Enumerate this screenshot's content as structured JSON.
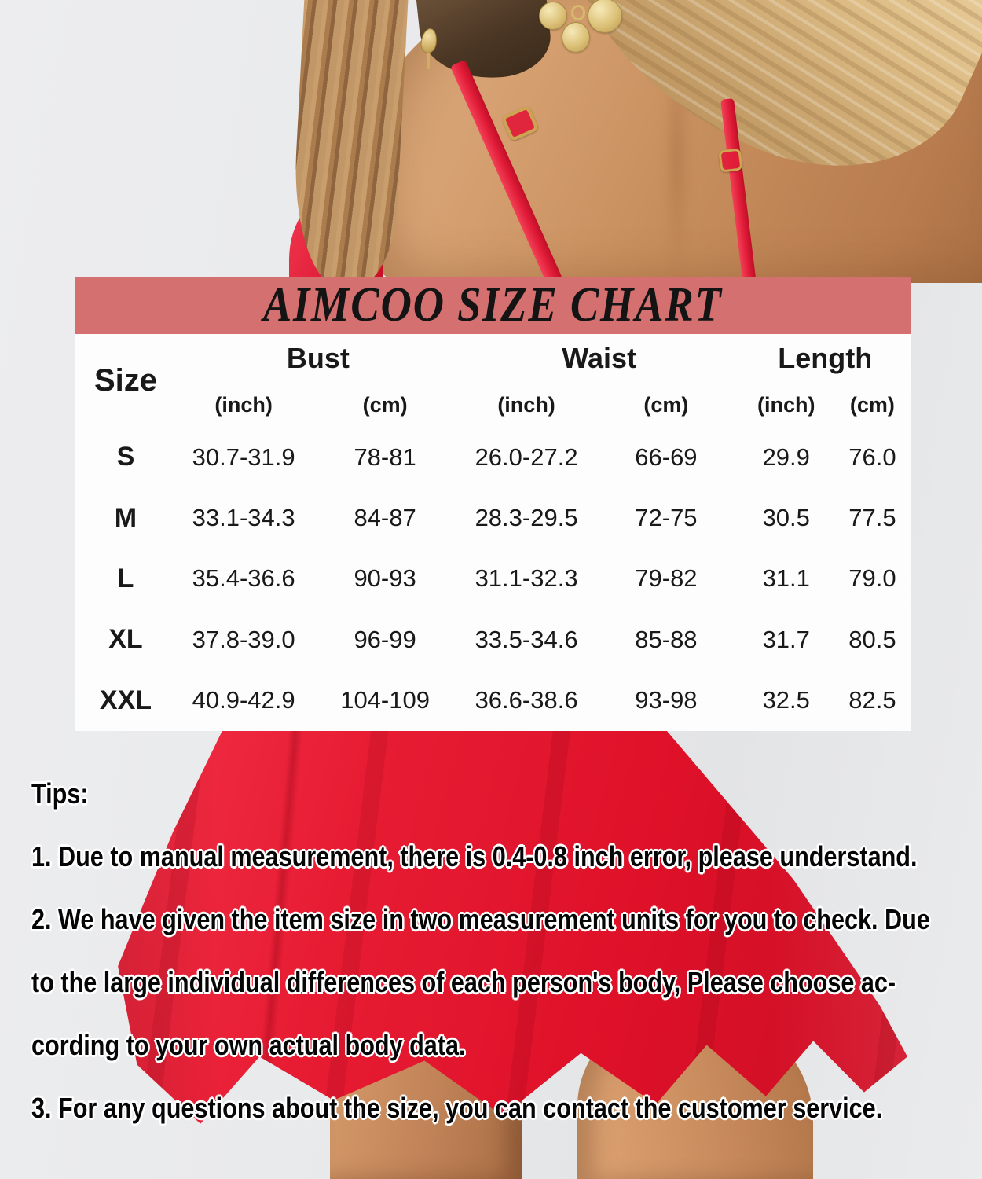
{
  "banner": {
    "title": "AIMCOO SIZE CHART"
  },
  "table": {
    "size_header": "Size",
    "groups": [
      {
        "label": "Bust",
        "units": [
          "(inch)",
          "(cm)"
        ]
      },
      {
        "label": "Waist",
        "units": [
          "(inch)",
          "(cm)"
        ]
      },
      {
        "label": "Length",
        "units": [
          "(inch)",
          "(cm)"
        ]
      }
    ],
    "rows": [
      {
        "size": "S",
        "values": [
          "30.7-31.9",
          "78-81",
          "26.0-27.2",
          "66-69",
          "29.9",
          "76.0"
        ]
      },
      {
        "size": "M",
        "values": [
          "33.1-34.3",
          "84-87",
          "28.3-29.5",
          "72-75",
          "30.5",
          "77.5"
        ]
      },
      {
        "size": "L",
        "values": [
          "35.4-36.6",
          "90-93",
          "31.1-32.3",
          "79-82",
          "31.1",
          "79.0"
        ]
      },
      {
        "size": "XL",
        "values": [
          "37.8-39.0",
          "96-99",
          "33.5-34.6",
          "85-88",
          "31.7",
          "80.5"
        ]
      },
      {
        "size": "XXL",
        "values": [
          "40.9-42.9",
          "104-109",
          "36.6-38.6",
          "93-98",
          "32.5",
          "82.5"
        ]
      }
    ]
  },
  "tips": {
    "heading": "Tips:",
    "lines": [
      "1. Due to manual measurement, there is 0.4-0.8 inch error, please understand.",
      "2. We have given the item size in two measurement units for you to check. Due",
      "to the large individual differences of each person's body, Please choose ac-",
      "cording to your own actual body data.",
      "3. For any questions about the size, you can contact the customer service."
    ]
  },
  "colors": {
    "banner_bg": "#d4706f",
    "panel_bg": "#fdfdfd",
    "text": "#191919",
    "dress_red": "#e71c33",
    "wall_gray": "#e9eaec",
    "skin_tan": "#c88f5e",
    "hair_blonde": "#ddbc85",
    "gold": "#dcc178"
  }
}
